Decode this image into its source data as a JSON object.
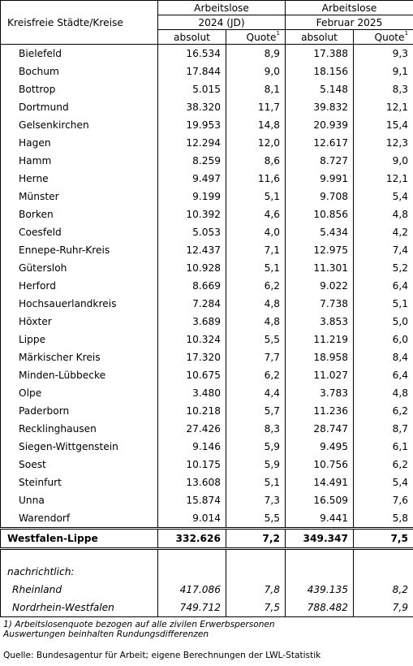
{
  "header": {
    "region_label": "Kreisfreie Städte/Kreise",
    "group_label": "Arbeitslose",
    "period_1": "2024 (JD)",
    "period_2": "Februar 2025",
    "col_absolut": "absolut",
    "col_quote": "Quote",
    "quote_footnote_mark": "1"
  },
  "rows": [
    {
      "name": "Bielefeld",
      "abs_2024": "16.534",
      "quote_2024": "8,9",
      "abs_2025": "17.388",
      "quote_2025": "9,3"
    },
    {
      "name": "Bochum",
      "abs_2024": "17.844",
      "quote_2024": "9,0",
      "abs_2025": "18.156",
      "quote_2025": "9,1"
    },
    {
      "name": "Bottrop",
      "abs_2024": "5.015",
      "quote_2024": "8,1",
      "abs_2025": "5.148",
      "quote_2025": "8,3"
    },
    {
      "name": "Dortmund",
      "abs_2024": "38.320",
      "quote_2024": "11,7",
      "abs_2025": "39.832",
      "quote_2025": "12,1"
    },
    {
      "name": "Gelsenkirchen",
      "abs_2024": "19.953",
      "quote_2024": "14,8",
      "abs_2025": "20.939",
      "quote_2025": "15,4"
    },
    {
      "name": "Hagen",
      "abs_2024": "12.294",
      "quote_2024": "12,0",
      "abs_2025": "12.617",
      "quote_2025": "12,3"
    },
    {
      "name": "Hamm",
      "abs_2024": "8.259",
      "quote_2024": "8,6",
      "abs_2025": "8.727",
      "quote_2025": "9,0"
    },
    {
      "name": "Herne",
      "abs_2024": "9.497",
      "quote_2024": "11,6",
      "abs_2025": "9.991",
      "quote_2025": "12,1"
    },
    {
      "name": "Münster",
      "abs_2024": "9.199",
      "quote_2024": "5,1",
      "abs_2025": "9.708",
      "quote_2025": "5,4"
    },
    {
      "name": "Borken",
      "abs_2024": "10.392",
      "quote_2024": "4,6",
      "abs_2025": "10.856",
      "quote_2025": "4,8"
    },
    {
      "name": "Coesfeld",
      "abs_2024": "5.053",
      "quote_2024": "4,0",
      "abs_2025": "5.434",
      "quote_2025": "4,2"
    },
    {
      "name": "Ennepe-Ruhr-Kreis",
      "abs_2024": "12.437",
      "quote_2024": "7,1",
      "abs_2025": "12.975",
      "quote_2025": "7,4"
    },
    {
      "name": "Gütersloh",
      "abs_2024": "10.928",
      "quote_2024": "5,1",
      "abs_2025": "11.301",
      "quote_2025": "5,2"
    },
    {
      "name": "Herford",
      "abs_2024": "8.669",
      "quote_2024": "6,2",
      "abs_2025": "9.022",
      "quote_2025": "6,4"
    },
    {
      "name": "Hochsauerlandkreis",
      "abs_2024": "7.284",
      "quote_2024": "4,8",
      "abs_2025": "7.738",
      "quote_2025": "5,1"
    },
    {
      "name": "Höxter",
      "abs_2024": "3.689",
      "quote_2024": "4,8",
      "abs_2025": "3.853",
      "quote_2025": "5,0"
    },
    {
      "name": "Lippe",
      "abs_2024": "10.324",
      "quote_2024": "5,5",
      "abs_2025": "11.219",
      "quote_2025": "6,0"
    },
    {
      "name": "Märkischer Kreis",
      "abs_2024": "17.320",
      "quote_2024": "7,7",
      "abs_2025": "18.958",
      "quote_2025": "8,4"
    },
    {
      "name": "Minden-Lübbecke",
      "abs_2024": "10.675",
      "quote_2024": "6,2",
      "abs_2025": "11.027",
      "quote_2025": "6,4"
    },
    {
      "name": "Olpe",
      "abs_2024": "3.480",
      "quote_2024": "4,4",
      "abs_2025": "3.783",
      "quote_2025": "4,8"
    },
    {
      "name": "Paderborn",
      "abs_2024": "10.218",
      "quote_2024": "5,7",
      "abs_2025": "11.236",
      "quote_2025": "6,2"
    },
    {
      "name": "Recklinghausen",
      "abs_2024": "27.426",
      "quote_2024": "8,3",
      "abs_2025": "28.747",
      "quote_2025": "8,7"
    },
    {
      "name": "Siegen-Wittgenstein",
      "abs_2024": "9.146",
      "quote_2024": "5,9",
      "abs_2025": "9.495",
      "quote_2025": "6,1"
    },
    {
      "name": "Soest",
      "abs_2024": "10.175",
      "quote_2024": "5,9",
      "abs_2025": "10.756",
      "quote_2025": "6,2"
    },
    {
      "name": "Steinfurt",
      "abs_2024": "13.608",
      "quote_2024": "5,1",
      "abs_2025": "14.491",
      "quote_2025": "5,4"
    },
    {
      "name": "Unna",
      "abs_2024": "15.874",
      "quote_2024": "7,3",
      "abs_2025": "16.509",
      "quote_2025": "7,6"
    },
    {
      "name": "Warendorf",
      "abs_2024": "9.014",
      "quote_2024": "5,5",
      "abs_2025": "9.441",
      "quote_2025": "5,8"
    }
  ],
  "total": {
    "name": "Westfalen-Lippe",
    "abs_2024": "332.626",
    "quote_2024": "7,2",
    "abs_2025": "349.347",
    "quote_2025": "7,5"
  },
  "memo": {
    "label": "nachrichtlich:",
    "rows": [
      {
        "name": "Rheinland",
        "abs_2024": "417.086",
        "quote_2024": "7,8",
        "abs_2025": "439.135",
        "quote_2025": "8,2"
      },
      {
        "name": "Nordrhein-Westfalen",
        "abs_2024": "749.712",
        "quote_2024": "7,5",
        "abs_2025": "788.482",
        "quote_2025": "7,9"
      }
    ]
  },
  "footnotes": [
    "1) Arbeitslosenquote bezogen auf alle zivilen Erwerbspersonen",
    "Auswertungen beinhalten Rundungsdifferenzen"
  ],
  "source": "Quelle: Bundesagentur für Arbeit; eigene Berechnungen der LWL-Statistik"
}
